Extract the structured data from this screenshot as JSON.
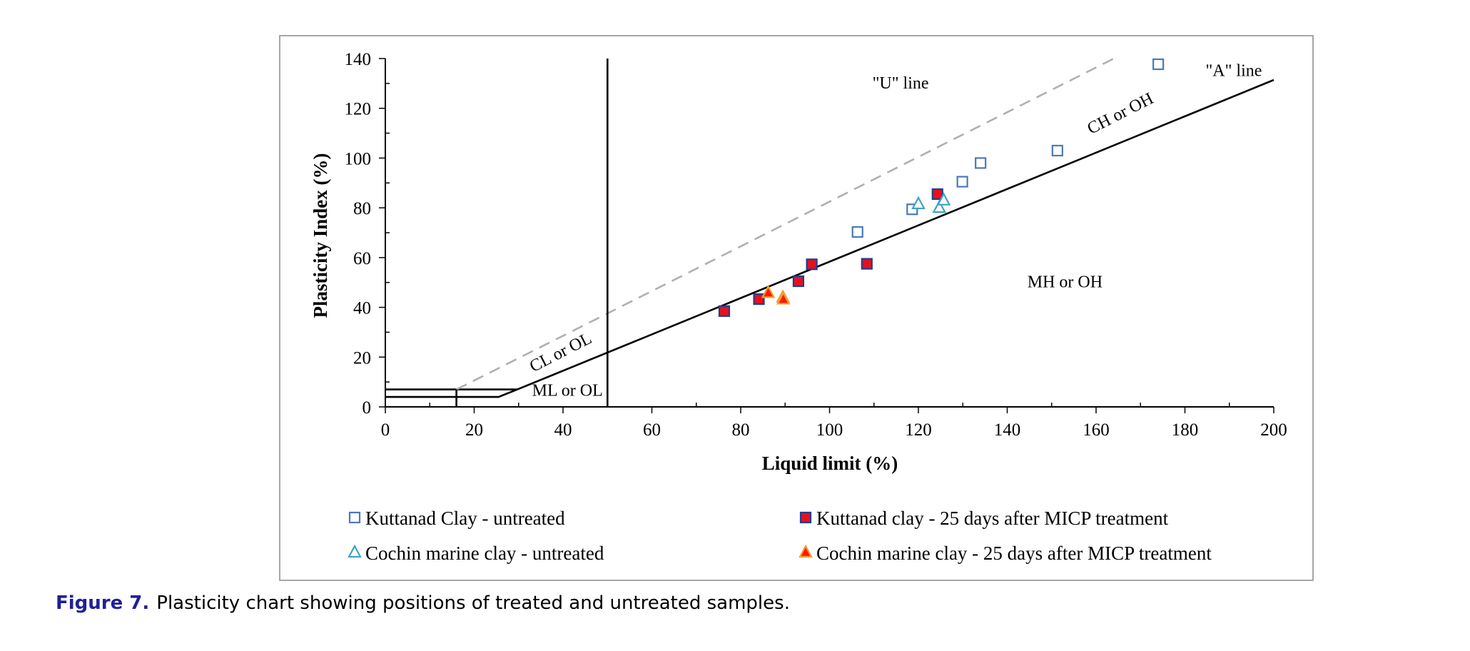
{
  "colors": {
    "square_open": "#4a7ab5",
    "square_filled_fill": "#e8101c",
    "square_filled_stroke": "#1f3f8f",
    "triangle_open": "#3ea3c4",
    "triangle_filled_fill": "#ff1a00",
    "triangle_filled_stroke": "#f0a030",
    "u_line": "#b0b0b0",
    "a_line": "#000000",
    "caption_label": "#1f1f99"
  },
  "chart_data": {
    "type": "scatter",
    "xlabel": "Liquid limit (%)",
    "ylabel": "Plasticity Index (%)",
    "xlim": [
      0,
      200
    ],
    "ylim": [
      0,
      140
    ],
    "x_ticks": [
      0,
      20,
      40,
      60,
      80,
      100,
      120,
      140,
      160,
      180,
      200
    ],
    "y_ticks": [
      0,
      20,
      40,
      60,
      80,
      100,
      120,
      140
    ],
    "grid": false,
    "legend_position": "bottom",
    "reference_lines": [
      {
        "name": "\"A\" line",
        "style": "solid",
        "color_key": "a_line",
        "points": [
          [
            0,
            4
          ],
          [
            25.5,
            4
          ],
          [
            29.7,
            7
          ],
          [
            0,
            7
          ],
          [
            29.7,
            7
          ],
          [
            200,
            131.4
          ]
        ]
      },
      {
        "name": "\"U\" line",
        "style": "dashed",
        "color_key": "u_line",
        "points": [
          [
            16,
            7
          ],
          [
            164,
            140
          ]
        ]
      },
      {
        "name": "LL = 50",
        "style": "solid",
        "color_key": "a_line",
        "points": [
          [
            50,
            0
          ],
          [
            50,
            140
          ]
        ]
      },
      {
        "name": "LL = 16",
        "style": "thin",
        "color_key": "a_line",
        "points": [
          [
            16,
            0
          ],
          [
            16,
            7
          ]
        ]
      }
    ],
    "region_labels": [
      {
        "text": "\"U\" line",
        "x": 116,
        "y": 128,
        "angle": 0
      },
      {
        "text": "\"A\" line",
        "x": 191,
        "y": 133,
        "angle": 0
      },
      {
        "text": "CH or OH",
        "x": 166,
        "y": 116,
        "angle": -27
      },
      {
        "text": "MH or OH",
        "x": 153,
        "y": 48,
        "angle": 0
      },
      {
        "text": "CL or OL",
        "x": 40,
        "y": 20,
        "angle": -27
      },
      {
        "text": "ML or OL",
        "x": 41,
        "y": 4.5,
        "angle": 0
      }
    ],
    "series": [
      {
        "name": "Kuttanad Clay - untreated",
        "marker": "square-open",
        "points": [
          [
            106.3,
            70.3
          ],
          [
            118.6,
            79.4
          ],
          [
            129.9,
            90.5
          ],
          [
            134,
            98
          ],
          [
            151.3,
            103
          ],
          [
            174,
            137.7
          ]
        ]
      },
      {
        "name": "Kuttanad clay - 25 days after MICP treatment",
        "marker": "square-filled",
        "points": [
          [
            76.3,
            38.5
          ],
          [
            84.1,
            43.3
          ],
          [
            93,
            50.5
          ],
          [
            96,
            57.3
          ],
          [
            108.4,
            57.5
          ],
          [
            124.3,
            85.5
          ]
        ]
      },
      {
        "name": "Cochin marine clay - untreated",
        "marker": "triangle-open",
        "points": [
          [
            120,
            81.5
          ],
          [
            124.7,
            80
          ],
          [
            125.7,
            83
          ]
        ]
      },
      {
        "name": "Cochin marine clay - 25 days after MICP treatment",
        "marker": "triangle-filled",
        "points": [
          [
            86.2,
            45.8
          ],
          [
            89.5,
            44
          ],
          [
            89.6,
            43.2
          ]
        ]
      }
    ]
  },
  "caption": {
    "label": "Figure 7.",
    "text": "Plasticity chart showing positions of treated and untreated samples."
  }
}
